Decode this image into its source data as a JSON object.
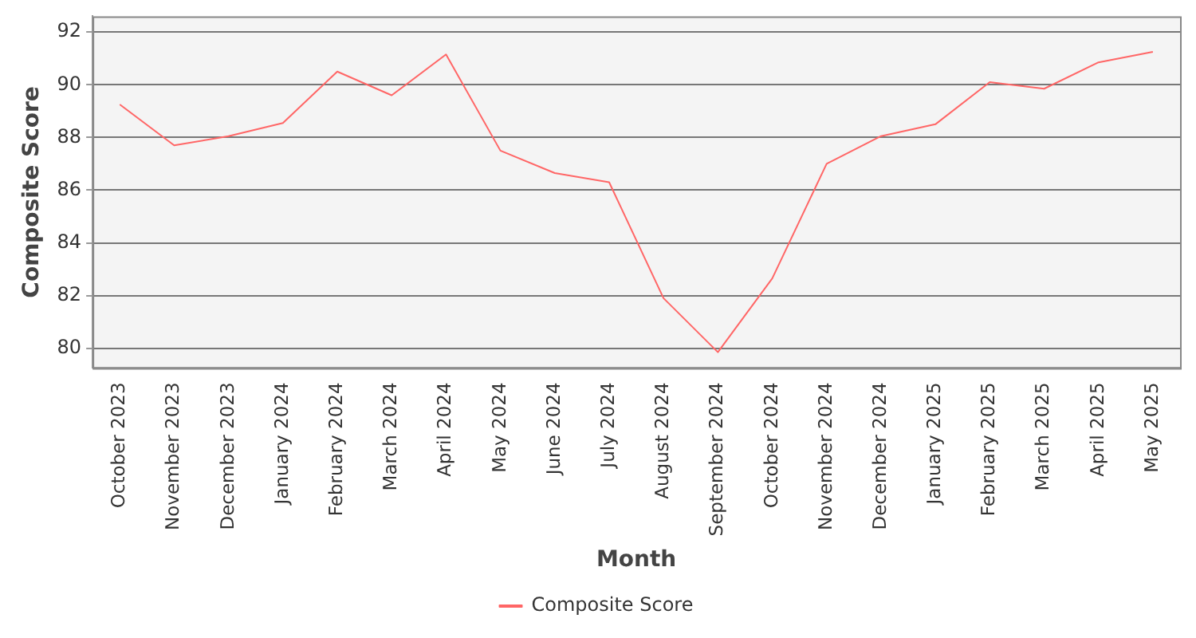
{
  "chart_data": {
    "type": "line",
    "xlabel": "Month",
    "ylabel": "Composite Score",
    "categories": [
      "October 2023",
      "November 2023",
      "December 2023",
      "January 2024",
      "February 2024",
      "March 2024",
      "April 2024",
      "May 2024",
      "June 2024",
      "July 2024",
      "August 2024",
      "September 2024",
      "October 2024",
      "November 2024",
      "December 2024",
      "January 2025",
      "February 2025",
      "March 2025",
      "April 2025",
      "May 2025"
    ],
    "series": [
      {
        "name": "Composite Score",
        "color": "#ff6666",
        "values": [
          89.25,
          87.7,
          88.05,
          88.55,
          90.5,
          89.6,
          91.15,
          87.5,
          86.65,
          86.3,
          81.9,
          79.85,
          82.65,
          87.0,
          88.05,
          88.5,
          90.1,
          89.85,
          90.85,
          91.25
        ]
      }
    ],
    "ylim": [
      79.25,
      92.6
    ],
    "yticks": [
      80,
      82,
      84,
      86,
      88,
      90,
      92
    ],
    "grid": "y",
    "legend": "bottom",
    "marker": "none",
    "line_style": "solid"
  }
}
